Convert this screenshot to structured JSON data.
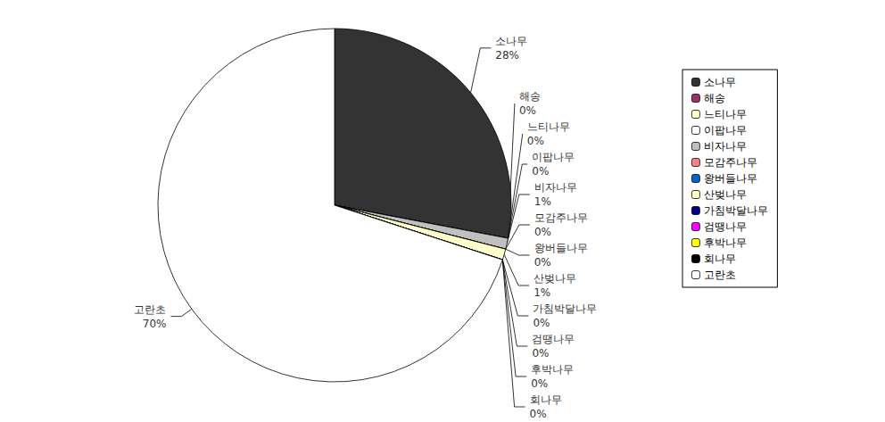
{
  "chart_data": {
    "type": "pie",
    "categories": [
      "소나무",
      "해송",
      "느티나무",
      "이팝나무",
      "비자나무",
      "모감주나무",
      "왕버들나무",
      "산벚나무",
      "가침박달나무",
      "검땡나무",
      "후박나무",
      "회나무",
      "고란초"
    ],
    "values": [
      28,
      0,
      0,
      0,
      1,
      0,
      0,
      1,
      0,
      0,
      0,
      0,
      70
    ],
    "value_labels": [
      "28%",
      "0%",
      "0%",
      "0%",
      "1%",
      "0%",
      "0%",
      "1%",
      "0%",
      "0%",
      "0%",
      "0%",
      "70%"
    ],
    "colors": [
      "#333333",
      "#993366",
      "#FFFFCC",
      "#FFFFFF",
      "#C0C0C0",
      "#FF8080",
      "#0066CC",
      "#FFFFCC",
      "#000080",
      "#FF00FF",
      "#FFFF00",
      "#000000",
      "#FFFFFF"
    ],
    "data_labels": true,
    "legend": "right"
  }
}
